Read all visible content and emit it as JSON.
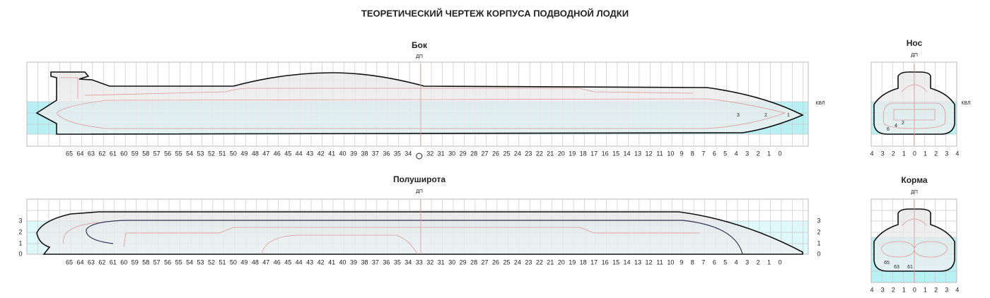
{
  "title": "ТЕОРЕТИЧЕСКИЙ ЧЕРТЕЖ КОРПУСА ПОДВОДНОЙ ЛОДКИ",
  "side_view": {
    "title": "Бок",
    "centerline": "ДП",
    "waterline": "КВЛ",
    "stations": [
      65,
      64,
      63,
      62,
      61,
      60,
      59,
      58,
      57,
      56,
      55,
      54,
      53,
      52,
      51,
      50,
      49,
      48,
      47,
      46,
      45,
      44,
      43,
      42,
      41,
      40,
      39,
      38,
      37,
      36,
      35,
      34,
      null,
      32,
      31,
      30,
      29,
      28,
      27,
      26,
      25,
      24,
      23,
      22,
      21,
      20,
      19,
      18,
      17,
      16,
      15,
      14,
      13,
      12,
      11,
      10,
      9,
      8,
      7,
      6,
      5,
      4,
      3,
      2,
      1,
      0
    ],
    "waterline_labels": [
      3,
      2,
      1
    ]
  },
  "half_breadth": {
    "title": "Полуширота",
    "centerline": "ДП",
    "stations": [
      65,
      64,
      63,
      62,
      61,
      60,
      59,
      58,
      57,
      56,
      55,
      54,
      53,
      52,
      51,
      50,
      49,
      48,
      47,
      46,
      45,
      44,
      43,
      42,
      41,
      40,
      39,
      38,
      37,
      36,
      35,
      34,
      33,
      32,
      31,
      30,
      29,
      28,
      27,
      26,
      25,
      24,
      23,
      22,
      21,
      20,
      19,
      18,
      17,
      16,
      15,
      14,
      13,
      12,
      11,
      10,
      9,
      8,
      7,
      6,
      5,
      4,
      3,
      2,
      1,
      0
    ],
    "left_labels": [
      3,
      2,
      1,
      0
    ],
    "right_labels": [
      3,
      2,
      1,
      0
    ]
  },
  "bow_section": {
    "title": "Нос",
    "centerline": "ДП",
    "waterline": "КВЛ",
    "scale": [
      4,
      3,
      2,
      1,
      0,
      1,
      2,
      3,
      4
    ],
    "frame_labels": [
      6,
      4,
      2
    ]
  },
  "stern_section": {
    "title": "Корма",
    "centerline": "ДП",
    "scale": [
      4,
      3,
      2,
      1,
      0,
      1,
      2,
      3,
      4
    ],
    "frame_labels": [
      65,
      63,
      61
    ]
  }
}
